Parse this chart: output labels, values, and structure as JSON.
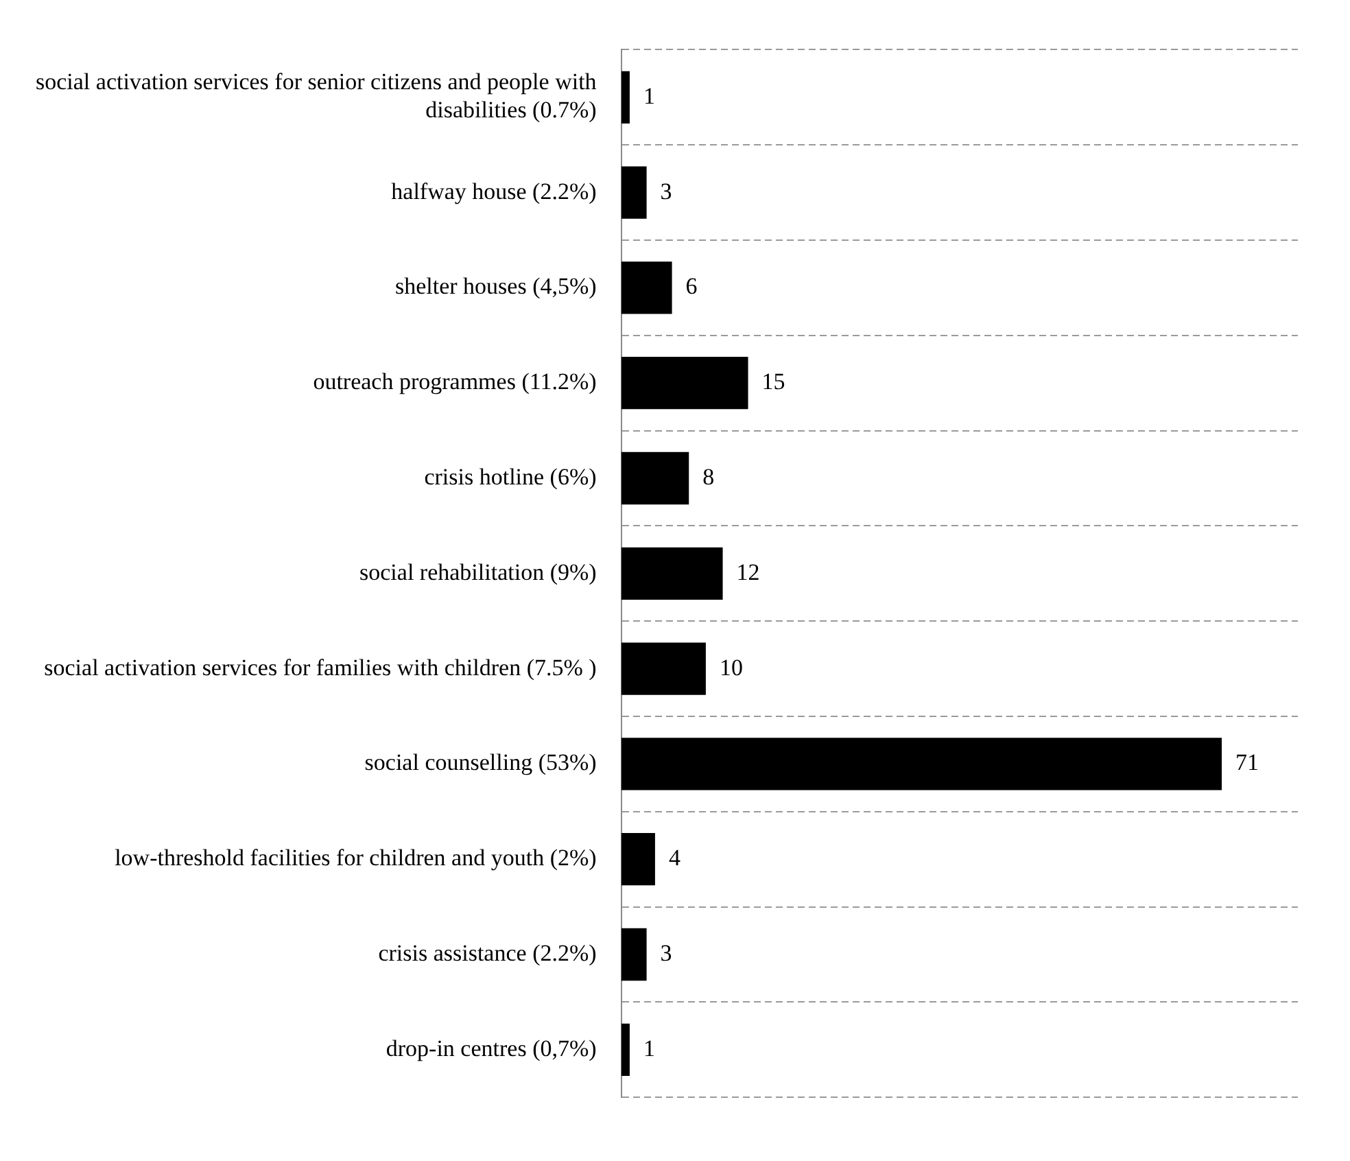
{
  "chart_data": {
    "type": "bar",
    "orientation": "horizontal",
    "categories": [
      "social activation services for senior citizens and people with disabilities (0.7%)",
      "halfway house (2.2%)",
      "shelter houses (4,5%)",
      "outreach programmes (11.2%)",
      "crisis hotline (6%)",
      "social rehabilitation (9%)",
      "social activation services for families with children (7.5% )",
      "social counselling (53%)",
      "low-threshold facilities for children and youth (2%)",
      "crisis assistance (2.2%)",
      "drop-in centres (0,7%)"
    ],
    "values": [
      1,
      3,
      6,
      15,
      8,
      12,
      10,
      71,
      4,
      3,
      1
    ],
    "color": "#000000",
    "data_labels": true,
    "grid": "y",
    "legend": false,
    "tick_labels": "y"
  }
}
